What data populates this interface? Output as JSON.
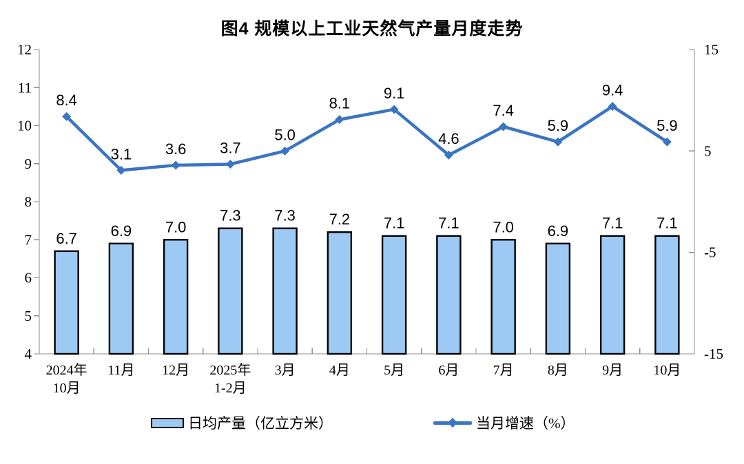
{
  "title": "图4  规模以上工业天然气产量月度走势",
  "chart_data": {
    "type": "bar",
    "subtype": "bar-line-combo",
    "title": "图4  规模以上工业天然气产量月度走势",
    "categories": [
      [
        "2024年",
        "10月"
      ],
      [
        "11月"
      ],
      [
        "12月"
      ],
      [
        "2025年",
        "1-2月"
      ],
      [
        "3月"
      ],
      [
        "4月"
      ],
      [
        "5月"
      ],
      [
        "6月"
      ],
      [
        "7月"
      ],
      [
        "8月"
      ],
      [
        "9月"
      ],
      [
        "10月"
      ]
    ],
    "series": [
      {
        "name": "日均产量（亿立方米）",
        "type": "bar",
        "axis": "left",
        "values": [
          6.7,
          6.9,
          7.0,
          7.3,
          7.3,
          7.2,
          7.1,
          7.1,
          7.0,
          6.9,
          7.1,
          7.1
        ]
      },
      {
        "name": "当月增速（%）",
        "type": "line",
        "axis": "right",
        "values": [
          8.4,
          3.1,
          3.6,
          3.7,
          5.0,
          8.1,
          9.1,
          4.6,
          7.4,
          5.9,
          9.4,
          5.9
        ]
      }
    ],
    "left_axis": {
      "min": 4,
      "max": 12,
      "ticks": [
        12,
        11,
        10,
        9,
        8,
        7,
        6,
        5,
        4
      ]
    },
    "right_axis": {
      "min": -15,
      "max": 15,
      "ticks": [
        15,
        5,
        -5,
        -15
      ]
    },
    "grid": false,
    "legend_position": "bottom",
    "legend": [
      {
        "label": "日均产量（亿立方米）",
        "swatch": "bar"
      },
      {
        "label": "当月增速（%）",
        "swatch": "line"
      }
    ],
    "colors": {
      "bar_fill": "#9DC9F5",
      "bar_border": "#000000",
      "line": "#3A74C2",
      "axis": "#8C8C8C",
      "text": "#000000"
    }
  }
}
